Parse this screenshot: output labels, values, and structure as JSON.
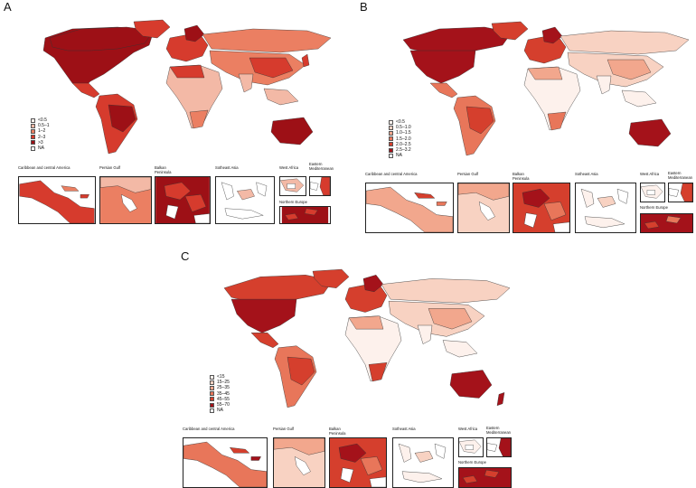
{
  "panels": [
    {
      "letter": "A",
      "legend": [
        {
          "label": "<0.5",
          "color": "#fbefea"
        },
        {
          "label": "0.5–1",
          "color": "#f3b9a6"
        },
        {
          "label": "1–2",
          "color": "#eb7f62"
        },
        {
          "label": "2–3",
          "color": "#d63b2d"
        },
        {
          "label": ">3",
          "color": "#9d1016"
        },
        {
          "label": "NA",
          "color": "#ffffff"
        }
      ]
    },
    {
      "letter": "B",
      "legend": [
        {
          "label": "<0.5",
          "color": "#fdf1ec"
        },
        {
          "label": "0.5–1.0",
          "color": "#f8d2c2"
        },
        {
          "label": "1.0–1.5",
          "color": "#f2a78d"
        },
        {
          "label": "1.5–2.0",
          "color": "#e8765a"
        },
        {
          "label": "2.0–2.5",
          "color": "#d53f2d"
        },
        {
          "label": "2.5–3.2",
          "color": "#a4121a"
        },
        {
          "label": "NA",
          "color": "#ffffff"
        }
      ]
    },
    {
      "letter": "C",
      "legend": [
        {
          "label": "<15",
          "color": "#fdf1ec"
        },
        {
          "label": "15–25",
          "color": "#f8d2c2"
        },
        {
          "label": "25–35",
          "color": "#f2a78d"
        },
        {
          "label": "35–45",
          "color": "#e8765a"
        },
        {
          "label": "45–55",
          "color": "#d53f2d"
        },
        {
          "label": "55–70",
          "color": "#a4121a"
        },
        {
          "label": "NA",
          "color": "#ffffff"
        }
      ]
    }
  ],
  "insets": {
    "caribbean": "Caribbean and central America",
    "persian_gulf": "Persian Gulf",
    "balkan": "Balkan\nPeninsula",
    "southeast_asia": "Sotheast Asia",
    "west_africa": "West Africa",
    "eastern_med": "Eastern\nMediterranean",
    "northern_europe": "Northern Europe"
  }
}
